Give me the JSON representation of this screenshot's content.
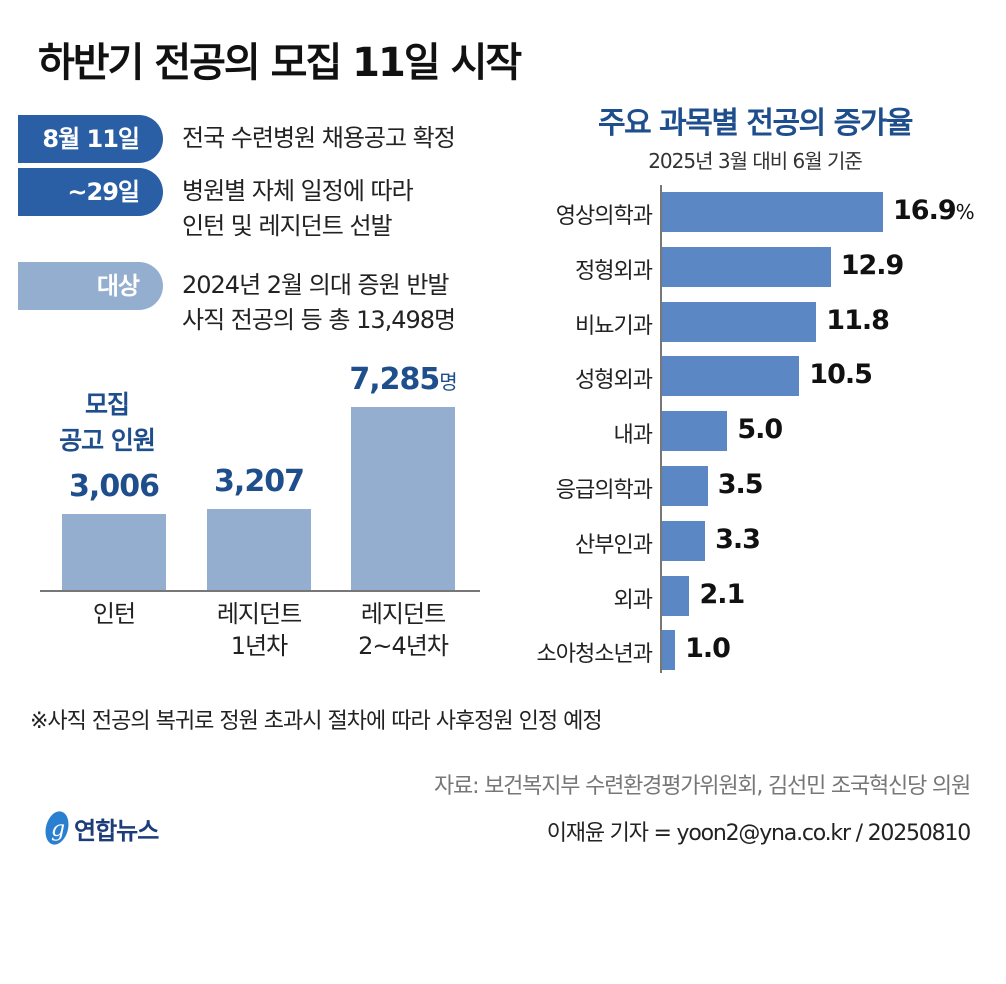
{
  "title": "하반기 전공의 모집 11일 시작",
  "schedule": [
    {
      "pill": "8월 11일",
      "lines": [
        "전국 수련병원 채용공고 확정"
      ],
      "color": "#2a5ea5"
    },
    {
      "pill": "~29일",
      "lines": [
        "병원별 자체 일정에 따라",
        "인턴 및 레지던트 선발"
      ],
      "color": "#2a5ea5"
    },
    {
      "pill": "대상",
      "lines": [
        "2024년 2월 의대 증원 반발",
        "사직 전공의 등 총 13,498명"
      ],
      "color": "#94aecf"
    }
  ],
  "colors": {
    "accent": "#1f4e8c",
    "left_bar": "#94aecf",
    "right_bar": "#5b87c5"
  },
  "chart_data": [
    {
      "type": "bar",
      "title": "모집 공고 인원",
      "title_lines": [
        "모집",
        "공고 인원"
      ],
      "unit": "명",
      "categories": [
        "인턴",
        "레지던트 1년차",
        "레지던트 2~4년차"
      ],
      "category_lines": [
        [
          "인턴"
        ],
        [
          "레지던트",
          "1년차"
        ],
        [
          "레지던트",
          "2~4년차"
        ]
      ],
      "values": [
        3006,
        3207,
        7285
      ],
      "labels": [
        "3,006",
        "3,207",
        "7,285"
      ]
    },
    {
      "type": "bar",
      "orientation": "horizontal",
      "title": "주요 과목별 전공의 증가율",
      "subtitle": "2025년 3월 대비 6월 기준",
      "unit": "%",
      "categories": [
        "영상의학과",
        "정형외과",
        "비뇨기과",
        "성형외과",
        "내과",
        "응급의학과",
        "산부인과",
        "외과",
        "소아청소년과"
      ],
      "values": [
        16.9,
        12.9,
        11.8,
        10.5,
        5.0,
        3.5,
        3.3,
        2.1,
        1.0
      ],
      "labels": [
        "16.9",
        "12.9",
        "11.8",
        "10.5",
        "5.0",
        "3.5",
        "3.3",
        "2.1",
        "1.0"
      ]
    }
  ],
  "footnote": "※사직 전공의 복귀로 정원 초과시 절차에 따라 사후정원 인정 예정",
  "source": "자료: 보건복지부 수련환경평가위원회, 김선민 조국혁신당 의원",
  "byline": "이재윤 기자 = yoon2@yna.co.kr / 20250810",
  "logo": "연합뉴스"
}
